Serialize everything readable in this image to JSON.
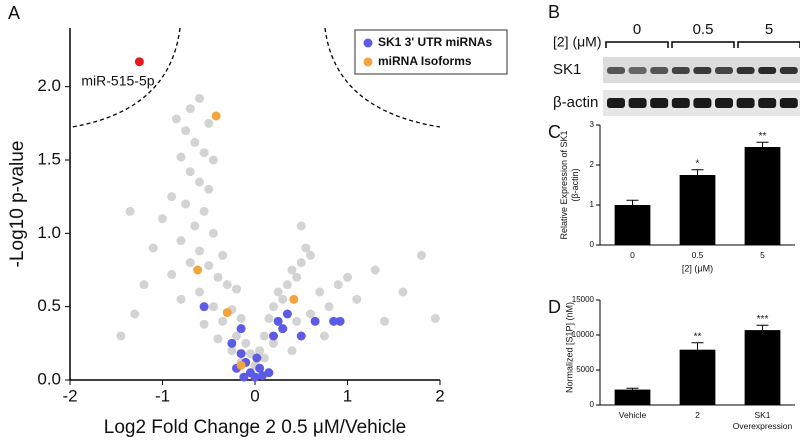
{
  "chart_data": [
    {
      "type": "scatter",
      "panel_label": "A",
      "xlabel": "Log2 Fold Change 2 0.5 μM/Vehicle",
      "ylabel": "-Log10 p-value",
      "xlim": [
        -2,
        2
      ],
      "xticks": [
        -2,
        -1,
        0,
        1,
        2
      ],
      "ylim": [
        0,
        2.4
      ],
      "yticks": [
        {
          "value": 0,
          "label": "0.0"
        },
        0.5,
        {
          "value": 1,
          "label": "1.0"
        },
        1.5,
        {
          "value": 2,
          "label": "2.0"
        }
      ],
      "points": {
        "color": "#d3d3d3",
        "x": [
          -0.6,
          -0.7,
          -0.85,
          -0.5,
          -0.75,
          -0.65,
          -0.55,
          -0.8,
          -0.45,
          -0.7,
          -0.6,
          -0.5,
          -0.9,
          -0.75,
          -0.55,
          -1.0,
          -0.65,
          -0.45,
          -0.8,
          -1.1,
          -0.6,
          -0.35,
          -0.7,
          -0.5,
          -0.9,
          -0.4,
          -1.2,
          -0.3,
          -0.6,
          -0.2,
          -0.8,
          -0.45,
          -0.25,
          -1.3,
          -0.35,
          -0.15,
          -0.55,
          -0.2,
          -0.4,
          -0.1,
          -0.25,
          -0.05,
          -0.15,
          0.0,
          0.05,
          -1.45,
          -1.35,
          0.1,
          0.15,
          0.2,
          0.25,
          0.3,
          0.35,
          0.4,
          0.45,
          0.5,
          0.55,
          0.6,
          0.5,
          0.7,
          0.8,
          0.9,
          0.3,
          0.2,
          0.45,
          0.6,
          1.0,
          1.1,
          1.3,
          1.6,
          1.8,
          1.95,
          1.4,
          0.75,
          0.1,
          0.4
        ],
        "y": [
          1.92,
          1.85,
          1.78,
          1.75,
          1.7,
          1.62,
          1.55,
          1.52,
          1.5,
          1.42,
          1.35,
          1.3,
          1.25,
          1.2,
          1.15,
          1.1,
          1.05,
          1.0,
          0.95,
          0.9,
          0.88,
          0.85,
          0.8,
          0.78,
          0.72,
          0.7,
          0.65,
          0.65,
          0.6,
          0.62,
          0.55,
          0.5,
          0.48,
          0.45,
          0.4,
          0.42,
          0.38,
          0.3,
          0.28,
          0.25,
          0.2,
          0.18,
          0.12,
          0.1,
          0.2,
          0.3,
          1.15,
          0.3,
          0.42,
          0.5,
          0.6,
          0.55,
          0.65,
          0.75,
          0.7,
          0.8,
          0.9,
          0.85,
          1.05,
          0.6,
          0.5,
          0.65,
          0.35,
          0.25,
          0.4,
          0.45,
          0.7,
          0.55,
          0.75,
          0.6,
          0.85,
          0.42,
          0.4,
          0.3,
          0.15,
          0.2
        ]
      },
      "series": [
        {
          "name": "SK1 3' UTR miRNAs",
          "color": "#5b5be6",
          "x": [
            -0.55,
            -0.15,
            -0.25,
            -0.15,
            -0.1,
            -0.2,
            -0.05,
            0.0,
            0.05,
            -0.12,
            0.02,
            0.08,
            0.15,
            0.3,
            0.25,
            0.35,
            0.5,
            0.65,
            0.85,
            0.92,
            0.2
          ],
          "y": [
            0.5,
            0.35,
            0.25,
            0.18,
            0.12,
            0.08,
            0.05,
            0.02,
            0.08,
            0.02,
            0.15,
            0.03,
            0.05,
            0.35,
            0.4,
            0.45,
            0.3,
            0.4,
            0.4,
            0.4,
            0.3
          ]
        },
        {
          "name": "miRNA Isoforms",
          "color": "#f4a43c",
          "x": [
            -0.42,
            -0.62,
            -0.3,
            0.42,
            -0.15
          ],
          "y": [
            1.8,
            0.75,
            0.46,
            0.55,
            0.1
          ]
        }
      ],
      "highlight": {
        "label": "miR-515-5p",
        "x": -1.25,
        "y": 2.17,
        "color": "#e8191c"
      }
    },
    {
      "type": "blot",
      "panel_label": "B",
      "dose_label": "[2] (μM)",
      "doses": [
        "0",
        "0.5",
        "5"
      ],
      "rows": [
        "SK1",
        "β-actin"
      ]
    },
    {
      "type": "bar",
      "panel_label": "C",
      "xlabel": "[2] (μM)",
      "ylabel": "Relative Expression of SK1 (β-actin)",
      "categories": [
        "0",
        "0.5",
        "5"
      ],
      "values": [
        1.0,
        1.75,
        2.45
      ],
      "errors": [
        0.12,
        0.13,
        0.12
      ],
      "significance": [
        null,
        "*",
        "**"
      ],
      "color": "#000000",
      "ylim": [
        0,
        3
      ],
      "yticks": [
        0,
        1,
        2,
        3
      ]
    },
    {
      "type": "bar",
      "panel_label": "D",
      "ylabel": "Normalized [S1P] (nM)",
      "categories": [
        "Vehicle",
        "2",
        "SK1 Overexpression"
      ],
      "values": [
        2200,
        7900,
        10700
      ],
      "errors": [
        200,
        1000,
        700
      ],
      "significance": [
        null,
        "**",
        "***"
      ],
      "color": "#000000",
      "ylim": [
        0,
        15000
      ],
      "yticks": [
        0,
        5000,
        10000,
        15000
      ]
    }
  ]
}
